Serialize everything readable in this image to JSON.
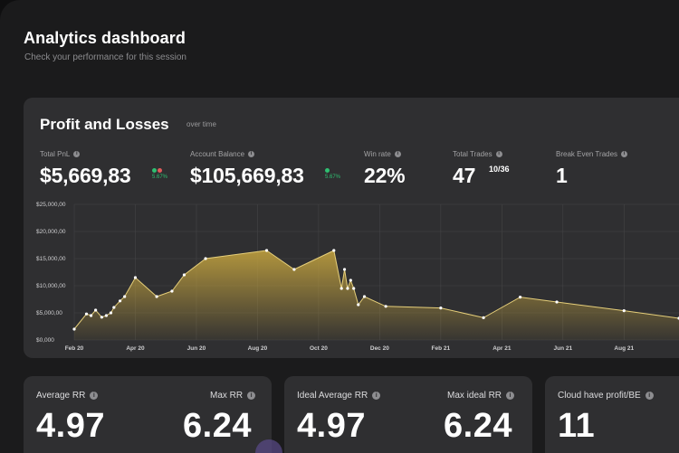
{
  "header": {
    "title": "Analytics dashboard",
    "subtitle": "Check your performance for this session"
  },
  "pnl_panel": {
    "title": "Profit and Losses",
    "subtitle": "over time",
    "stats": {
      "total_pnl": {
        "label": "Total PnL",
        "value": "$5,669,83",
        "change": "5.67%"
      },
      "account_balance": {
        "label": "Account Balance",
        "value": "$105,669,83",
        "change": "5.67%"
      },
      "win_rate": {
        "label": "Win rate",
        "value": "22%"
      },
      "total_trades": {
        "label": "Total Trades",
        "value": "47",
        "fraction": "10/36"
      },
      "break_even": {
        "label": "Break Even Trades",
        "value": "1"
      }
    }
  },
  "colors": {
    "accent_gold": "#c9a94a",
    "positive": "#2fbf71",
    "negative": "#e05a5a",
    "panel_bg": "#2f2f31"
  },
  "chart_data": {
    "type": "area",
    "title": "Profit and Losses",
    "xlabel": "",
    "ylabel": "",
    "ylim": [
      0,
      25000
    ],
    "y_ticks": [
      "$25,000,00",
      "$20,000,00",
      "$15,000,00",
      "$10,000,00",
      "$5,000,00",
      "$0,000"
    ],
    "y_tick_values": [
      25000,
      20000,
      15000,
      10000,
      5000,
      0
    ],
    "x_ticks": [
      "Feb 20",
      "Apr 20",
      "Jun 20",
      "Aug 20",
      "Oct 20",
      "Dec 20",
      "Feb 21",
      "Apr 21",
      "Jun 21",
      "Aug 21"
    ],
    "x_tick_positions": [
      0,
      2,
      4,
      6,
      8,
      10,
      12,
      14,
      16,
      18
    ],
    "grid": true,
    "series": [
      {
        "name": "PnL",
        "x": [
          0,
          0.4,
          0.55,
          0.7,
          0.9,
          1.05,
          1.2,
          1.3,
          1.5,
          1.65,
          2.0,
          2.7,
          3.2,
          3.6,
          4.3,
          6.3,
          7.2,
          8.5,
          8.75,
          8.85,
          8.95,
          9.05,
          9.15,
          9.3,
          9.5,
          10.2,
          12.0,
          13.4,
          14.6,
          15.8,
          18.0,
          19.8
        ],
        "values": [
          2000,
          4800,
          4500,
          5500,
          4200,
          4500,
          5000,
          6000,
          7200,
          8000,
          11500,
          8000,
          9000,
          12000,
          15000,
          16500,
          13000,
          16500,
          9500,
          13000,
          9500,
          11000,
          9500,
          6500,
          8000,
          6200,
          5900,
          4100,
          7900,
          7000,
          5400,
          4000
        ]
      }
    ]
  },
  "cards": [
    {
      "left_label": "Average RR",
      "left_value": "4.97",
      "right_label": "Max RR",
      "right_value": "6.24"
    },
    {
      "left_label": "Ideal Average RR",
      "left_value": "4.97",
      "right_label": "Max ideal RR",
      "right_value": "6.24"
    },
    {
      "left_label": "Cloud have profit/BE",
      "left_value": "11"
    }
  ]
}
